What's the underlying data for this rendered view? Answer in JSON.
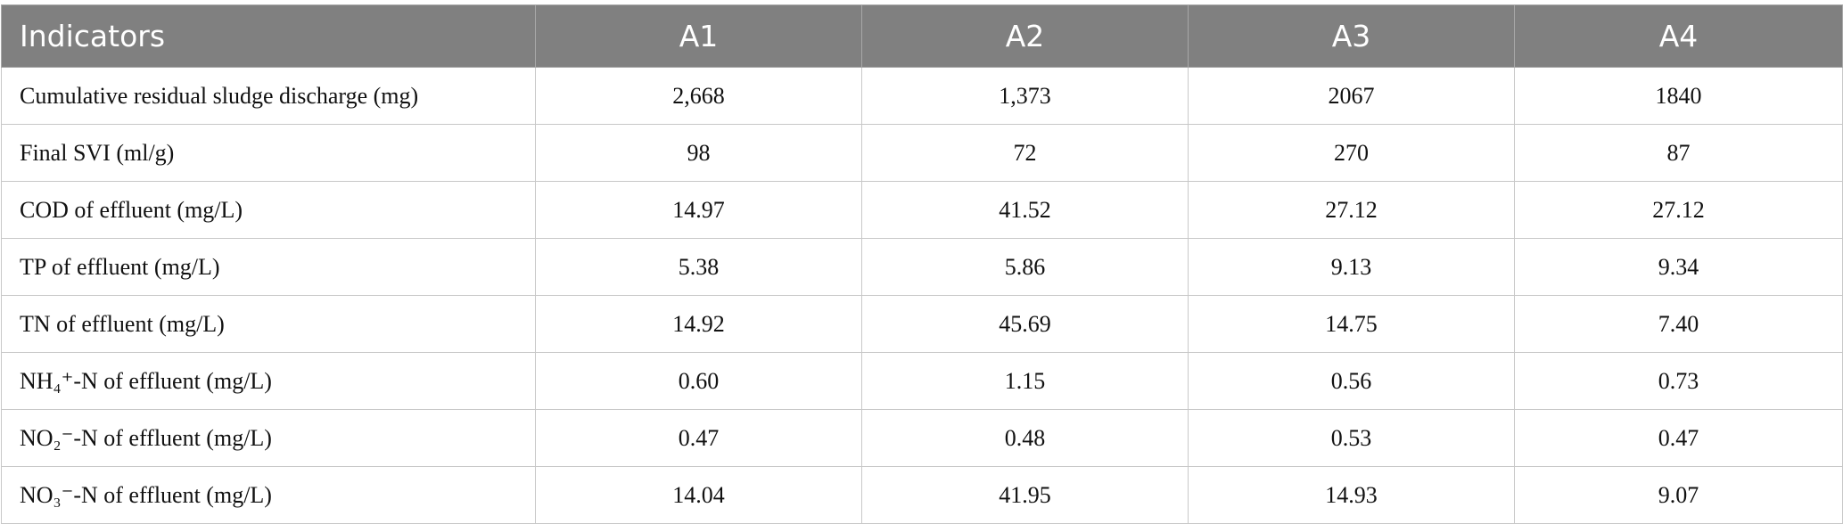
{
  "table": {
    "header": [
      "Indicators",
      "A1",
      "A2",
      "A3",
      "A4"
    ],
    "rows": [
      [
        "Cumulative residual sludge discharge (mg)",
        "2,668",
        "1,373",
        "2067",
        "1840"
      ],
      [
        "Final SVI (ml/g)",
        "98",
        "72",
        "270",
        "87"
      ],
      [
        "COD of effluent (mg/L)",
        "14.97",
        "41.52",
        "27.12",
        "27.12"
      ],
      [
        "TP of effluent (mg/L)",
        "5.38",
        "5.86",
        "9.13",
        "9.34"
      ],
      [
        "TN of effluent (mg/L)",
        "14.92",
        "45.69",
        "14.75",
        "7.40"
      ],
      [
        "NH₄⁺-N of effluent (mg/L)",
        "0.60",
        "1.15",
        "0.56",
        "0.73"
      ],
      [
        "NO₂⁻-N of effluent (mg/L)",
        "0.47",
        "0.48",
        "0.53",
        "0.47"
      ],
      [
        "NO₃⁻-N of effluent (mg/L)",
        "14.04",
        "41.95",
        "14.93",
        "9.07"
      ]
    ]
  }
}
